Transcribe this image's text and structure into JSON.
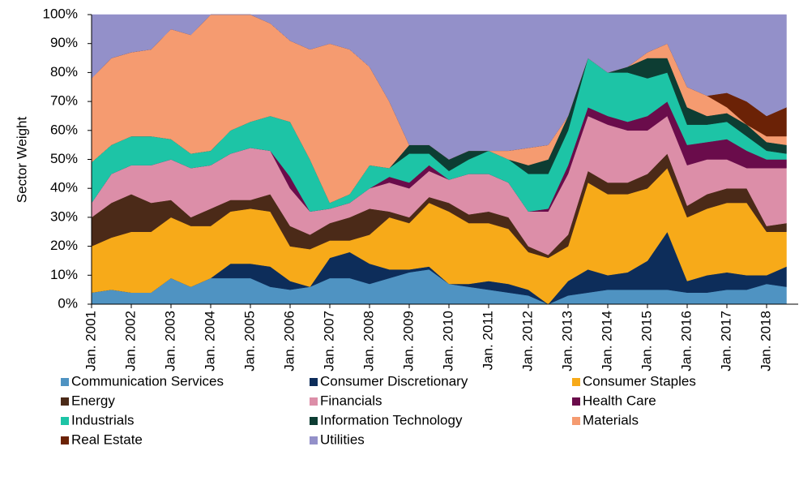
{
  "chart_data": {
    "type": "stacked_area",
    "y_label": "Sector Weight",
    "categories": [
      "Jan. 2001",
      null,
      "Jan. 2002",
      null,
      "Jan. 2003",
      null,
      "Jan. 2004",
      null,
      "Jan. 2005",
      null,
      "Jan. 2006",
      null,
      "Jan. 2007",
      null,
      "Jan. 2008",
      null,
      "Jan. 2009",
      null,
      "Jan. 2010",
      null,
      "Jan. 2011",
      null,
      "Jan. 2012",
      null,
      "Jan. 2013",
      null,
      "Jan. 2014",
      null,
      "Jan. 2015",
      null,
      "Jan. 2016",
      null,
      "Jan. 2017",
      null,
      "Jan. 2018",
      null
    ],
    "ylim": [
      0,
      100
    ],
    "yticks": [
      {
        "value": 0,
        "label": "0%"
      },
      {
        "value": 10,
        "label": "10%"
      },
      {
        "value": 20,
        "label": "20%"
      },
      {
        "value": 30,
        "label": "30%"
      },
      {
        "value": 40,
        "label": "40%"
      },
      {
        "value": 50,
        "label": "50%"
      },
      {
        "value": 60,
        "label": "60%"
      },
      {
        "value": 70,
        "label": "70%"
      },
      {
        "value": 80,
        "label": "80%"
      },
      {
        "value": 90,
        "label": "90%"
      },
      {
        "value": 100,
        "label": "100%"
      }
    ],
    "legend": "bottom",
    "series": [
      {
        "name": "Communication Services",
        "color": "#4f93c2",
        "values": [
          4,
          5,
          4,
          4,
          9,
          6,
          9,
          9,
          9,
          6,
          5,
          6,
          9,
          9,
          7,
          9,
          11,
          12,
          7,
          6,
          5,
          4,
          3,
          0,
          3,
          4,
          5,
          5,
          5,
          5,
          4,
          4,
          5,
          5,
          7,
          6
        ]
      },
      {
        "name": "Consumer Discretionary",
        "color": "#0d2d5a",
        "values": [
          0,
          0,
          0,
          0,
          0,
          0,
          0,
          5,
          5,
          7,
          3,
          0,
          7,
          9,
          7,
          3,
          1,
          1,
          0,
          1,
          3,
          3,
          2,
          0,
          5,
          8,
          5,
          6,
          10,
          20,
          4,
          6,
          6,
          5,
          3,
          7
        ]
      },
      {
        "name": "Consumer Staples",
        "color": "#f7aa19",
        "values": [
          16,
          18,
          21,
          21,
          21,
          21,
          18,
          18,
          19,
          19,
          12,
          13,
          6,
          4,
          10,
          18,
          16,
          22,
          25,
          21,
          20,
          19,
          13,
          16,
          12,
          30,
          28,
          27,
          25,
          22,
          22,
          23,
          24,
          25,
          15,
          12
        ]
      },
      {
        "name": "Energy",
        "color": "#4b2a18",
        "values": [
          10,
          12,
          13,
          10,
          6,
          3,
          6,
          4,
          3,
          6,
          7,
          5,
          6,
          8,
          9,
          2,
          2,
          2,
          3,
          3,
          4,
          4,
          2,
          1,
          4,
          4,
          4,
          4,
          5,
          5,
          4,
          5,
          5,
          5,
          2,
          3
        ]
      },
      {
        "name": "Financials",
        "color": "#dc8ea8",
        "values": [
          5,
          10,
          10,
          13,
          14,
          17,
          15,
          16,
          18,
          15,
          13,
          8,
          5,
          5,
          7,
          10,
          10,
          9,
          8,
          14,
          13,
          12,
          12,
          15,
          21,
          19,
          20,
          18,
          15,
          13,
          14,
          12,
          10,
          7,
          20,
          19
        ]
      },
      {
        "name": "Health Care",
        "color": "#6a0c4b",
        "values": [
          0,
          0,
          0,
          0,
          0,
          0,
          0,
          0,
          0,
          0,
          4,
          0,
          0,
          0,
          0,
          2,
          2,
          2,
          0,
          0,
          0,
          0,
          0,
          1,
          3,
          3,
          3,
          3,
          5,
          5,
          7,
          6,
          7,
          6,
          3,
          3
        ]
      },
      {
        "name": "Industrials",
        "color": "#1dc4a6",
        "values": [
          14,
          10,
          10,
          10,
          7,
          5,
          5,
          8,
          9,
          12,
          19,
          18,
          2,
          3,
          8,
          3,
          10,
          4,
          3,
          5,
          8,
          8,
          13,
          12,
          12,
          17,
          15,
          17,
          13,
          10,
          7,
          6,
          6,
          5,
          3,
          2
        ]
      },
      {
        "name": "Information Technology",
        "color": "#0d3d33",
        "values": [
          0,
          0,
          0,
          0,
          0,
          0,
          0,
          0,
          0,
          0,
          0,
          0,
          0,
          0,
          0,
          0,
          3,
          3,
          4,
          3,
          0,
          0,
          3,
          5,
          5,
          0,
          0,
          2,
          7,
          5,
          6,
          3,
          3,
          4,
          3,
          3
        ]
      },
      {
        "name": "Materials",
        "color": "#f59b70",
        "values": [
          29,
          30,
          29,
          30,
          38,
          41,
          47,
          40,
          37,
          32,
          28,
          38,
          55,
          50,
          34,
          23,
          0,
          0,
          0,
          0,
          0,
          3,
          6,
          5,
          0,
          0,
          0,
          0,
          2,
          5,
          7,
          7,
          2,
          0,
          2,
          3
        ]
      },
      {
        "name": "Real Estate",
        "color": "#6b2206",
        "values": [
          0,
          0,
          0,
          0,
          0,
          0,
          0,
          0,
          0,
          0,
          0,
          0,
          0,
          0,
          0,
          0,
          0,
          0,
          0,
          0,
          0,
          0,
          0,
          0,
          0,
          0,
          0,
          0,
          0,
          0,
          0,
          0,
          5,
          8,
          7,
          10
        ]
      },
      {
        "name": "Utilities",
        "color": "#9390c9",
        "values": [
          22,
          15,
          13,
          12,
          5,
          7,
          0,
          0,
          0,
          3,
          9,
          12,
          10,
          12,
          18,
          30,
          45,
          45,
          50,
          47,
          47,
          47,
          46,
          45,
          35,
          15,
          20,
          18,
          13,
          10,
          25,
          28,
          27,
          30,
          35,
          32
        ]
      }
    ]
  }
}
